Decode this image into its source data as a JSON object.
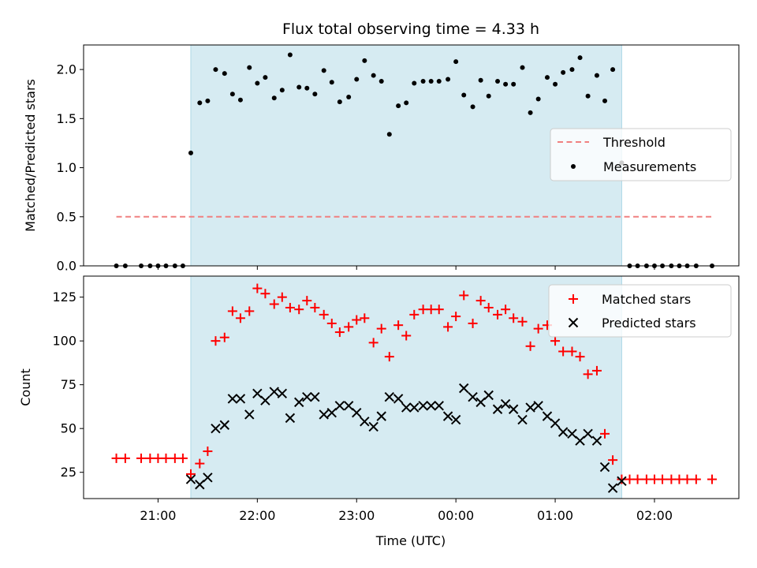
{
  "figure": {
    "title": "Flux total observing time = 4.33 h",
    "xlabel": "Time (UTC)",
    "colors": {
      "shade": "#add8e6",
      "threshold": "#f08080",
      "matched": "#ff0000",
      "predicted": "#000000",
      "measurement": "#000000"
    }
  },
  "chart_data": [
    {
      "type": "scatter",
      "panel": "top",
      "title": "Flux total observing time = 4.33 h",
      "xlabel": "",
      "ylabel": "Matched/Predicted stars",
      "x_unit": "hours after 00:00 UTC",
      "xlim": [
        -3.75,
        2.85
      ],
      "ylim": [
        0,
        2.25
      ],
      "yticks": [
        0.0,
        0.5,
        1.0,
        1.5,
        2.0
      ],
      "ytick_labels": [
        "0.0",
        "0.5",
        "1.0",
        "1.5",
        "2.0"
      ],
      "shaded_span": [
        -2.67,
        1.67
      ],
      "legend": {
        "placement": "center-right",
        "entries": [
          "Threshold",
          "Measurements"
        ]
      },
      "threshold": {
        "name": "Threshold",
        "y": 0.5,
        "x_range": [
          -3.42,
          2.58
        ]
      },
      "series": [
        {
          "name": "Measurements",
          "x": [
            -3.42,
            -3.33,
            -3.17,
            -3.08,
            -3.0,
            -2.92,
            -2.83,
            -2.75,
            -2.67,
            -2.58,
            -2.5,
            -2.42,
            -2.33,
            -2.25,
            -2.17,
            -2.08,
            -2.0,
            -1.92,
            -1.83,
            -1.75,
            -1.67,
            -1.58,
            -1.5,
            -1.42,
            -1.33,
            -1.25,
            -1.17,
            -1.08,
            -1.0,
            -0.92,
            -0.83,
            -0.75,
            -0.67,
            -0.58,
            -0.5,
            -0.42,
            -0.33,
            -0.25,
            -0.17,
            -0.08,
            0.0,
            0.08,
            0.17,
            0.25,
            0.33,
            0.42,
            0.5,
            0.58,
            0.67,
            0.75,
            0.83,
            0.92,
            1.0,
            1.08,
            1.17,
            1.25,
            1.33,
            1.42,
            1.5,
            1.58,
            1.67,
            1.75,
            1.83,
            1.92,
            2.0,
            2.08,
            2.17,
            2.25,
            2.33,
            2.42,
            2.58
          ],
          "y": [
            0,
            0,
            0,
            0,
            0,
            0,
            0,
            0,
            1.15,
            1.66,
            1.68,
            2.0,
            1.96,
            1.75,
            1.69,
            2.02,
            1.86,
            1.92,
            1.71,
            1.79,
            2.15,
            1.82,
            1.81,
            1.75,
            1.99,
            1.87,
            1.67,
            1.72,
            1.9,
            2.09,
            1.94,
            1.88,
            1.34,
            1.63,
            1.66,
            1.86,
            1.88,
            1.88,
            1.88,
            1.9,
            2.08,
            1.74,
            1.62,
            1.89,
            1.73,
            1.88,
            1.85,
            1.85,
            2.02,
            1.56,
            1.7,
            1.92,
            1.85,
            1.97,
            2.0,
            2.12,
            1.73,
            1.94,
            1.68,
            2.0,
            1.05,
            0,
            0,
            0,
            0,
            0,
            0,
            0,
            0,
            0,
            0
          ]
        }
      ]
    },
    {
      "type": "scatter",
      "panel": "bottom",
      "title": "",
      "xlabel": "Time (UTC)",
      "ylabel": "Count",
      "x_unit": "hours after 00:00 UTC",
      "xlim": [
        -3.75,
        2.85
      ],
      "ylim": [
        10,
        137
      ],
      "yticks": [
        25,
        50,
        75,
        100,
        125
      ],
      "ytick_labels": [
        "25",
        "50",
        "75",
        "100",
        "125"
      ],
      "xticks": [
        -3,
        -2,
        -1,
        0,
        1,
        2
      ],
      "xtick_labels": [
        "21:00",
        "22:00",
        "23:00",
        "00:00",
        "01:00",
        "02:00"
      ],
      "shaded_span": [
        -2.67,
        1.67
      ],
      "legend": {
        "placement": "top-right",
        "entries": [
          "Matched stars",
          "Predicted stars"
        ]
      },
      "series": [
        {
          "name": "Matched stars",
          "x": [
            -3.42,
            -3.33,
            -3.17,
            -3.08,
            -3.0,
            -2.92,
            -2.83,
            -2.75,
            -2.67,
            -2.58,
            -2.5,
            -2.42,
            -2.33,
            -2.25,
            -2.17,
            -2.08,
            -2.0,
            -1.92,
            -1.83,
            -1.75,
            -1.67,
            -1.58,
            -1.5,
            -1.42,
            -1.33,
            -1.25,
            -1.17,
            -1.08,
            -1.0,
            -0.92,
            -0.83,
            -0.75,
            -0.67,
            -0.58,
            -0.5,
            -0.42,
            -0.33,
            -0.25,
            -0.17,
            -0.08,
            0.0,
            0.08,
            0.17,
            0.25,
            0.33,
            0.42,
            0.5,
            0.58,
            0.67,
            0.75,
            0.83,
            0.92,
            1.0,
            1.08,
            1.17,
            1.25,
            1.33,
            1.42,
            1.5,
            1.58,
            1.67,
            1.75,
            1.83,
            1.92,
            2.0,
            2.08,
            2.17,
            2.25,
            2.33,
            2.42,
            2.58
          ],
          "y": [
            33,
            33,
            33,
            33,
            33,
            33,
            33,
            33,
            24,
            30,
            37,
            100,
            102,
            117,
            113,
            117,
            130,
            127,
            121,
            125,
            119,
            118,
            123,
            119,
            115,
            110,
            105,
            108,
            112,
            113,
            99,
            107,
            91,
            109,
            103,
            115,
            118,
            118,
            118,
            108,
            114,
            126,
            110,
            123,
            119,
            115,
            118,
            113,
            111,
            97,
            107,
            109,
            100,
            94,
            94,
            91,
            81,
            83,
            47,
            32,
            21,
            21,
            21,
            21,
            21,
            21,
            21,
            21,
            21,
            21,
            21
          ]
        },
        {
          "name": "Predicted stars",
          "x": [
            -2.67,
            -2.58,
            -2.5,
            -2.42,
            -2.33,
            -2.25,
            -2.17,
            -2.08,
            -2.0,
            -1.92,
            -1.83,
            -1.75,
            -1.67,
            -1.58,
            -1.5,
            -1.42,
            -1.33,
            -1.25,
            -1.17,
            -1.08,
            -1.0,
            -0.92,
            -0.83,
            -0.75,
            -0.67,
            -0.58,
            -0.5,
            -0.42,
            -0.33,
            -0.25,
            -0.17,
            -0.08,
            0.0,
            0.08,
            0.17,
            0.25,
            0.33,
            0.42,
            0.5,
            0.58,
            0.67,
            0.75,
            0.83,
            0.92,
            1.0,
            1.08,
            1.17,
            1.25,
            1.33,
            1.42,
            1.5,
            1.58,
            1.67
          ],
          "y": [
            21,
            18,
            22,
            50,
            52,
            67,
            67,
            58,
            70,
            66,
            71,
            70,
            56,
            65,
            68,
            68,
            58,
            59,
            63,
            63,
            59,
            54,
            51,
            57,
            68,
            67,
            62,
            62,
            63,
            63,
            63,
            57,
            55,
            73,
            68,
            65,
            69,
            61,
            64,
            61,
            55,
            62,
            63,
            57,
            53,
            48,
            47,
            43,
            47,
            43,
            28,
            16,
            20
          ]
        }
      ]
    }
  ]
}
